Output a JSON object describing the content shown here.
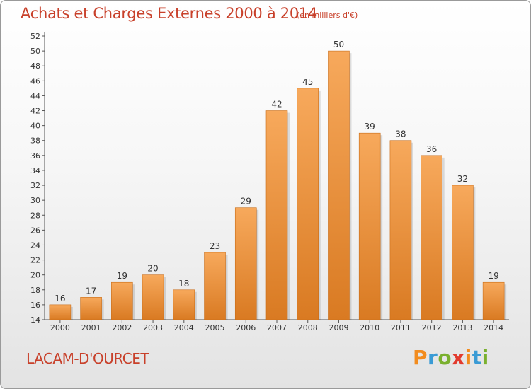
{
  "header": {
    "title": "Achats et Charges Externes 2000 à 2014",
    "subtitle": "(en milliers d'€)"
  },
  "footer": {
    "place": "LACAM-D'OURCET",
    "brand": "Proxiti"
  },
  "colors": {
    "title": "#c8402a",
    "bar_light": "#f7a95c",
    "bar_dark": "#d97a22",
    "brand_letters": [
      "#f28c1e",
      "#3a9bd5",
      "#7ab02e",
      "#e23b2e",
      "#f28c1e",
      "#3a9bd5",
      "#7ab02e"
    ]
  },
  "chart_data": {
    "type": "bar",
    "title": "Achats et Charges Externes 2000 à 2014",
    "subtitle": "(en milliers d'€)",
    "categories": [
      "2000",
      "2001",
      "2002",
      "2003",
      "2004",
      "2005",
      "2006",
      "2007",
      "2008",
      "2009",
      "2010",
      "2011",
      "2012",
      "2013",
      "2014"
    ],
    "values": [
      16,
      17,
      19,
      20,
      18,
      23,
      29,
      42,
      45,
      50,
      39,
      38,
      36,
      32,
      19
    ],
    "ylim": [
      14,
      52
    ],
    "yticks": [
      14,
      16,
      18,
      20,
      22,
      24,
      26,
      28,
      30,
      32,
      34,
      36,
      38,
      40,
      42,
      44,
      46,
      48,
      50,
      52
    ],
    "grid": false,
    "data_labels": true
  }
}
